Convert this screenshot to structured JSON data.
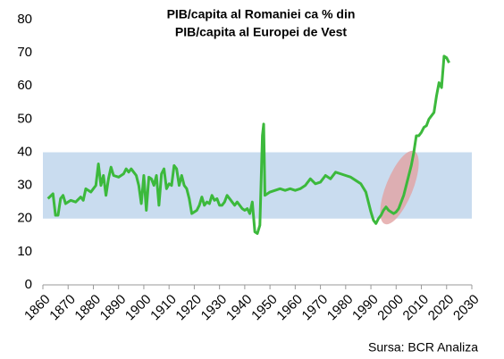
{
  "chart_data": {
    "type": "line",
    "title": [
      "PIB/capita al Romaniei ca % din",
      "PIB/capita al Europei de Vest"
    ],
    "source": "Sursa: BCR Analiza",
    "band": [
      20,
      40
    ],
    "band_color": "#c9dcef",
    "xlim": [
      1860,
      2030
    ],
    "xticks": [
      1860,
      1870,
      1880,
      1890,
      1900,
      1910,
      1920,
      1930,
      1940,
      1950,
      1960,
      1970,
      1980,
      1990,
      2000,
      2010,
      2020,
      2030
    ],
    "ylim": [
      0,
      80
    ],
    "yticks": [
      0,
      10,
      20,
      30,
      40,
      50,
      60,
      70,
      80
    ],
    "x": [
      1862,
      1864,
      1865,
      1866,
      1867,
      1868,
      1869,
      1871,
      1873,
      1875,
      1876,
      1877,
      1879,
      1881,
      1882,
      1883,
      1884,
      1885,
      1886,
      1887,
      1888,
      1890,
      1892,
      1893,
      1894,
      1895,
      1896,
      1897,
      1898,
      1899,
      1900,
      1901,
      1902,
      1903,
      1904,
      1905,
      1906,
      1907,
      1908,
      1909,
      1910,
      1911,
      1912,
      1913,
      1914,
      1915,
      1916,
      1917,
      1918,
      1919,
      1920,
      1921,
      1922,
      1923,
      1924,
      1925,
      1926,
      1927,
      1928,
      1929,
      1930,
      1931,
      1932,
      1933,
      1934,
      1935,
      1936,
      1937,
      1938,
      1939,
      1940,
      1941,
      1942,
      1943,
      1944,
      1945,
      1946,
      1947,
      1947.5,
      1948,
      1949,
      1950,
      1952,
      1954,
      1956,
      1958,
      1960,
      1962,
      1964,
      1966,
      1968,
      1970,
      1972,
      1974,
      1976,
      1978,
      1980,
      1982,
      1984,
      1986,
      1988,
      1990,
      1991,
      1992,
      1993,
      1994,
      1995,
      1996,
      1997,
      1998,
      1999,
      2000,
      2001,
      2002,
      2003,
      2004,
      2005,
      2006,
      2007,
      2008,
      2009,
      2010,
      2011,
      2012,
      2013,
      2014,
      2015,
      2016,
      2017,
      2018,
      2019,
      2020,
      2021
    ],
    "series": [
      {
        "color": "#3cb93c",
        "values": [
          26,
          27.5,
          21,
          21,
          26,
          27,
          24.5,
          25.5,
          25,
          26.5,
          25.5,
          29,
          28,
          30,
          36.5,
          30,
          33,
          27,
          32,
          35.5,
          33,
          32.5,
          33.5,
          35,
          34,
          35,
          34,
          33,
          30,
          24.5,
          33,
          22.5,
          32.5,
          32,
          30,
          33,
          24,
          33.5,
          35,
          29,
          30.5,
          30,
          36,
          35,
          30,
          33,
          30,
          29,
          26,
          21.5,
          22,
          22.5,
          24,
          26.5,
          24,
          25,
          24.5,
          27,
          25.5,
          26,
          24,
          24,
          25,
          27,
          26,
          25,
          24,
          25,
          24,
          23,
          22.5,
          23,
          21.5,
          25,
          16,
          15.5,
          18,
          45,
          48.5,
          27,
          27.5,
          28,
          28.5,
          29,
          28.5,
          29,
          28.5,
          29,
          30,
          32,
          30.5,
          31,
          33,
          32,
          34,
          33.5,
          33,
          32.5,
          31.5,
          30.5,
          28,
          22,
          19.5,
          18.5,
          20,
          21,
          22.5,
          23.5,
          22.5,
          22,
          21.5,
          22,
          23,
          25,
          27,
          30,
          33,
          36,
          40,
          45,
          45,
          46,
          47.5,
          48,
          50,
          51,
          52,
          57,
          61,
          59.5,
          69,
          68.5,
          67
        ]
      }
    ]
  }
}
